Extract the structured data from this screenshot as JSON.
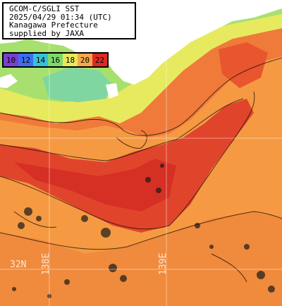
{
  "info": {
    "line1": "GCOM-C/SGLI SST",
    "line2": "2025/04/29 01:34 (UTC)",
    "line3": "Kanagawa Prefecture",
    "line4": "supplied by JAXA"
  },
  "legend": [
    {
      "label": "10",
      "color": "#7b3fd0"
    },
    {
      "label": "12",
      "color": "#3c6df0"
    },
    {
      "label": "14",
      "color": "#38c0d6"
    },
    {
      "label": "16",
      "color": "#7fd86a"
    },
    {
      "label": "18",
      "color": "#e8e85a"
    },
    {
      "label": "20",
      "color": "#f5a94a"
    },
    {
      "label": "22",
      "color": "#e02a24"
    }
  ],
  "grid_labels": {
    "lat": "32N",
    "lon1": "138E",
    "lon2": "139E"
  },
  "colors": {
    "land": "#ffffff",
    "cool_water": "#e8e85a",
    "mid_water": "#f5a64c",
    "warm_water": "#e8432c",
    "hot_water": "#d42a22",
    "coastal_green": "#8cd96b"
  }
}
